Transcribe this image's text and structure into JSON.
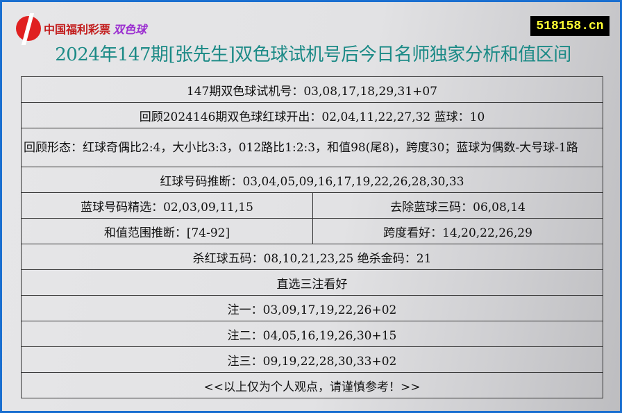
{
  "header": {
    "logo_text": "中国福利彩票",
    "logo_game": "双色球",
    "site": "518158.cn",
    "title": "2024年147期[张先生]双色球试机号后今日名师独家分析和值区间"
  },
  "rows": {
    "trial": "147期双色球试机号：03,08,17,18,29,31+07",
    "review": "回顾2024146期双色球红球开出：02,04,11,22,27,32 蓝球：10",
    "pattern": "回顾形态：红球奇偶比2:4，大小比3:3，012路比1:2:3，和值98(尾8)，跨度30；蓝球为偶数-大号球-1路",
    "red": "红球号码推断：03,04,05,09,16,17,19,22,26,28,30,33",
    "blue_pick": "蓝球号码精选：02,03,09,11,15",
    "blue_remove": "去除蓝球三码：06,08,14",
    "sum": "和值范围推断：[74-92]",
    "span": "跨度看好：14,20,22,26,29",
    "kill": "杀红球五码：08,10,21,23,25 绝杀金码：21",
    "direct": "直选三注看好",
    "bet1": "注一：03,09,17,19,22,26+02",
    "bet2": "注二：04,05,16,19,26,30+15",
    "bet3": "注三：09,19,22,28,30,33+02",
    "note": "<<以上仅为个人观点，请谨慎参考！>>"
  }
}
